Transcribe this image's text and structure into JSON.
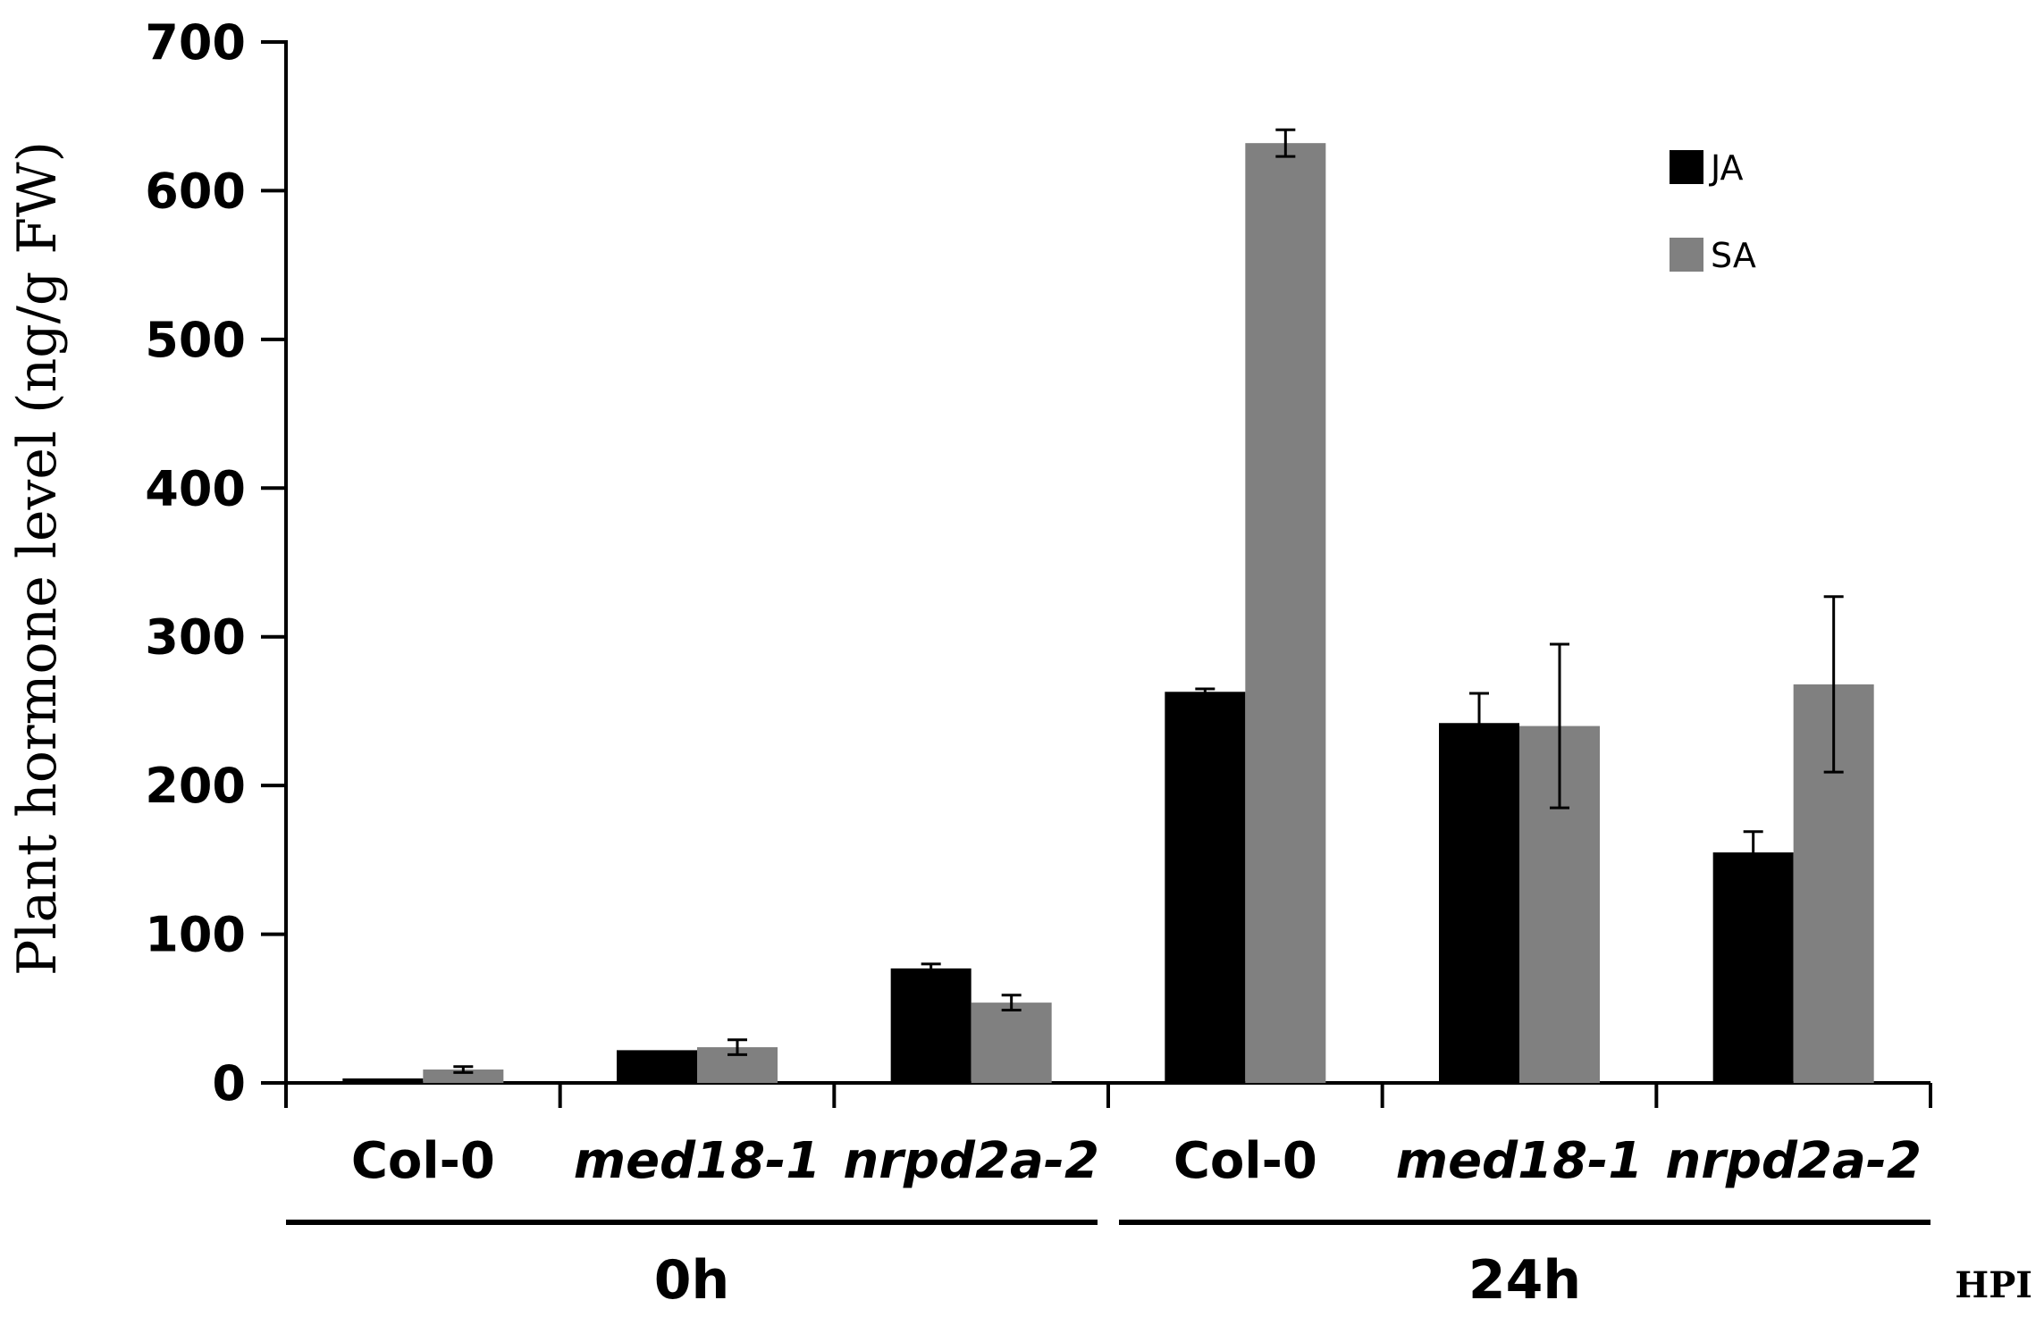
{
  "chart_data": {
    "type": "bar",
    "ylabel": "Plant hormone level (ng/g FW)",
    "xlabel": "HPI",
    "ylim": [
      0,
      700
    ],
    "yticks": [
      0,
      100,
      200,
      300,
      400,
      500,
      600,
      700
    ],
    "categories": [
      "Col-0",
      "med18-1",
      "nrpd2a-2",
      "Col-0",
      "med18-1",
      "nrpd2a-2"
    ],
    "italic_categories": [
      false,
      true,
      true,
      false,
      true,
      true
    ],
    "groups": [
      {
        "label": "0h",
        "categories": [
          0,
          1,
          2
        ]
      },
      {
        "label": "24h",
        "categories": [
          3,
          4,
          5
        ]
      }
    ],
    "series": [
      {
        "name": "JA",
        "color": "#000000",
        "values": [
          3,
          22,
          77,
          263,
          242,
          155
        ],
        "errors": [
          0,
          0,
          3,
          2,
          20,
          14
        ]
      },
      {
        "name": "SA",
        "color": "#808080",
        "values": [
          9,
          24,
          54,
          632,
          240,
          268
        ],
        "errors": [
          2,
          5,
          5,
          9,
          55,
          59
        ]
      }
    ],
    "legend_position": "top-right"
  }
}
